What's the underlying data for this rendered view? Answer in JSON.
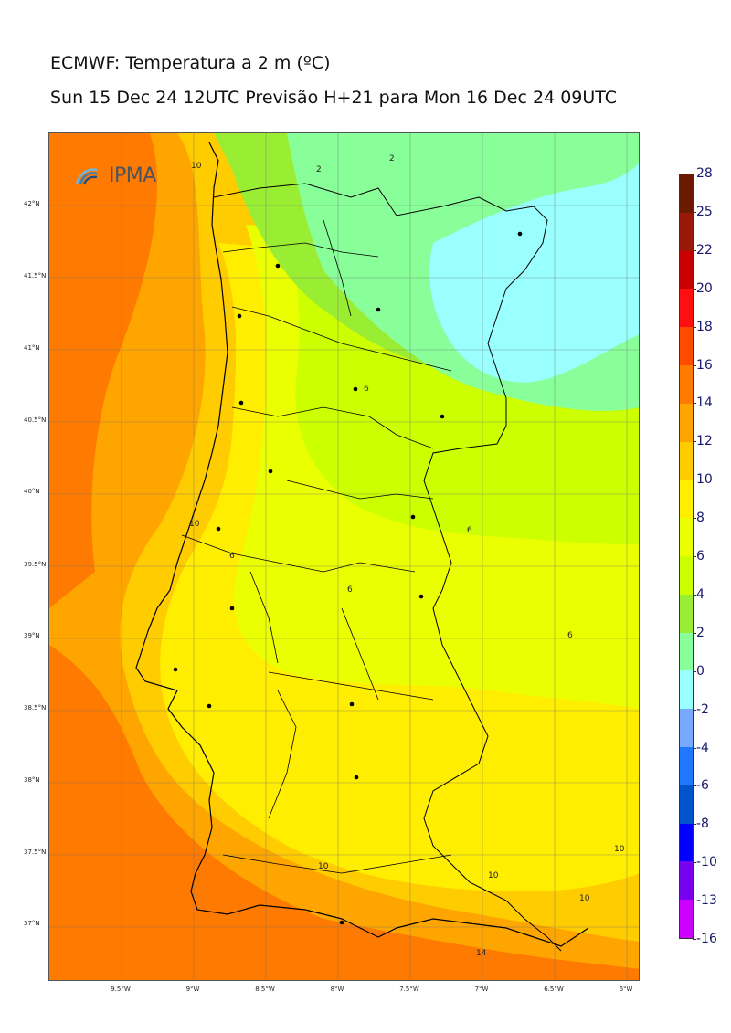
{
  "title": "ECMWF: Temperatura a 2 m (ºC)",
  "subtitle": "Sun 15 Dec 24 12UTC Previsão H+21 para Mon 16 Dec 24 09UTC",
  "logo_text": "IPMA",
  "lat_labels": [
    "42°N",
    "41.5°N",
    "41°N",
    "40.5°N",
    "40°N",
    "39.5°N",
    "39°N",
    "38.5°N",
    "38°N",
    "37.5°N",
    "37°N"
  ],
  "lon_labels": [
    "9.5°W",
    "9°W",
    "8.5°W",
    "8°W",
    "7.5°W",
    "7°W",
    "6.5°W",
    "6°W"
  ],
  "colorbar": {
    "labels": [
      "28",
      "25",
      "22",
      "20",
      "18",
      "16",
      "14",
      "12",
      "10",
      "8",
      "6",
      "4",
      "2",
      "0",
      "-2",
      "-4",
      "-6",
      "-8",
      "-10",
      "-13",
      "-16"
    ],
    "colors": [
      "#6b1a00",
      "#99180a",
      "#c80000",
      "#ff1010",
      "#ff4b00",
      "#ff7a00",
      "#ffa500",
      "#ffcc00",
      "#ffee00",
      "#eaff00",
      "#ccff00",
      "#99ee33",
      "#88ff99",
      "#99ffff",
      "#77aaff",
      "#2277ff",
      "#0055cc",
      "#0000ff",
      "#7700ee",
      "#cc00ff"
    ]
  },
  "contour_labels": [
    "2",
    "2",
    "10",
    "6",
    "6",
    "6",
    "6",
    "10",
    "6",
    "10",
    "10",
    "10",
    "10",
    "14"
  ],
  "zone_colors": {
    "sea_far": "#ff7a00",
    "sea_mid": "#ffa500",
    "sea_deep": "#ff4b00",
    "coast": "#ffcc00",
    "land_warm": "#ffee00",
    "land_mid": "#eaff00",
    "land_cool": "#ccff00",
    "land_cold": "#88ff99",
    "land_colder": "#99ffff",
    "green": "#99ee33"
  }
}
